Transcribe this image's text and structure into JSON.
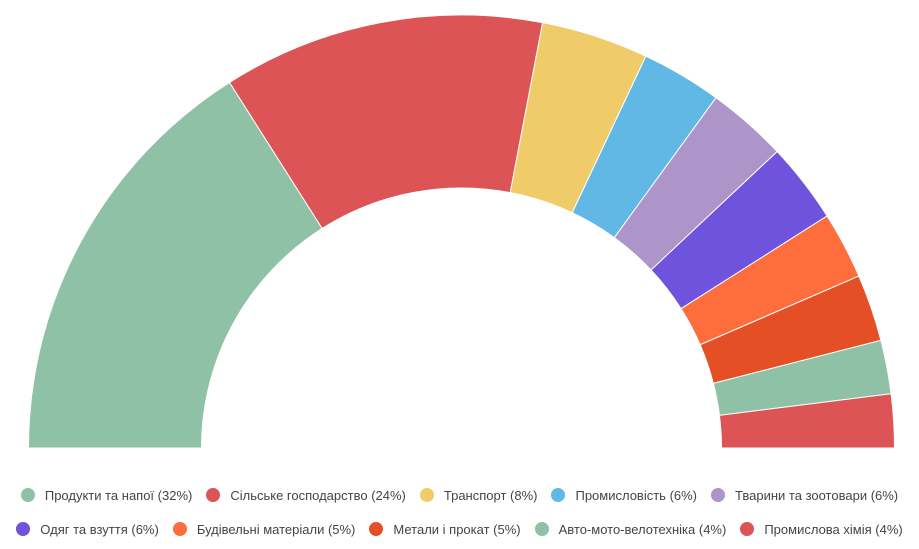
{
  "chart_data": {
    "type": "pie",
    "variant": "semicircle-donut",
    "title": "",
    "legend_position": "bottom",
    "categories": [
      "Продукти та напої (32%)",
      "Сільське господарство (24%)",
      "Транспорт (8%)",
      "Промисловість (6%)",
      "Тварини та зоотовари (6%)",
      "Одяг та взуття (6%)",
      "Будівельні матеріали (5%)",
      "Метали і прокат (5%)",
      "Авто-мото-велотехніка (4%)",
      "Промислова хімія (4%)"
    ],
    "values": [
      32,
      24,
      8,
      6,
      6,
      6,
      5,
      5,
      4,
      4
    ],
    "colors": [
      "#8fc1a6",
      "#dd5457",
      "#f0cb6a",
      "#62b8e5",
      "#ad94c9",
      "#6f53dc",
      "#fe6d3c",
      "#e44f26",
      "#8fc1a6",
      "#dd5457"
    ]
  }
}
